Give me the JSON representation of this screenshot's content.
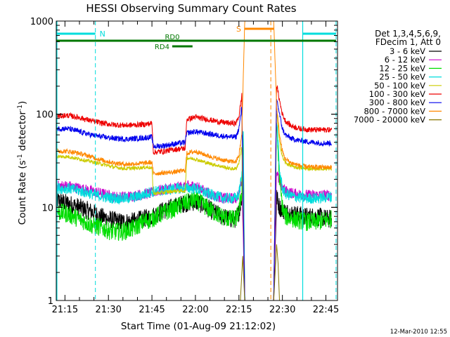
{
  "chart_data": {
    "type": "line",
    "title": "HESSI Observing Summary Count Rates",
    "xlabel": "Start Time (01-Aug-09 21:12:02)",
    "ylabel": "Count Rate (s⁻¹ detector⁻¹)",
    "ylabel_parts": {
      "a": "Count Rate (s",
      "sup1": "-1",
      "b": " detector",
      "sup2": "-1",
      "c": ")"
    },
    "y_scale": "log",
    "x_unit": "minutes of day",
    "xlim": [
      1272,
      1369
    ],
    "ylim": [
      1,
      1000
    ],
    "x_ticks": [
      {
        "v": 1275,
        "label": "21:15"
      },
      {
        "v": 1290,
        "label": "21:30"
      },
      {
        "v": 1305,
        "label": "21:45"
      },
      {
        "v": 1320,
        "label": "22:00"
      },
      {
        "v": 1335,
        "label": "22:15"
      },
      {
        "v": 1350,
        "label": "22:30"
      },
      {
        "v": 1365,
        "label": "22:45"
      }
    ],
    "y_ticks": [
      {
        "v": 1,
        "label": "1"
      },
      {
        "v": 10,
        "label": "10"
      },
      {
        "v": 100,
        "label": "100"
      },
      {
        "v": 1000,
        "label": "1000"
      }
    ],
    "legend": {
      "placement": "right",
      "header": [
        "Det 1,3,4,5,6,9,",
        "FDecim 1, Att 0"
      ]
    },
    "series": [
      {
        "name": "3 - 6 keV",
        "color": "#000000",
        "noise": 0.1,
        "points": [
          [
            1272,
            12
          ],
          [
            1276,
            11
          ],
          [
            1280,
            10
          ],
          [
            1284,
            9
          ],
          [
            1287,
            8
          ],
          [
            1290,
            7.5
          ],
          [
            1294,
            7
          ],
          [
            1298,
            7
          ],
          [
            1302,
            7.5
          ],
          [
            1305,
            8
          ],
          [
            1308,
            9
          ],
          [
            1312,
            10
          ],
          [
            1316,
            11
          ],
          [
            1320,
            11.5
          ],
          [
            1323,
            10.5
          ],
          [
            1326,
            9
          ],
          [
            1329,
            8
          ],
          [
            1332,
            7.5
          ],
          [
            1334,
            7.5
          ],
          [
            1335,
            9
          ],
          [
            1336,
            13
          ],
          [
            1336.5,
            20
          ],
          [
            1337,
            1
          ],
          [
            1347,
            1
          ],
          [
            1348,
            13
          ],
          [
            1349,
            10
          ],
          [
            1351,
            9
          ],
          [
            1354,
            8.5
          ],
          [
            1358,
            8
          ],
          [
            1362,
            8
          ],
          [
            1366,
            7.5
          ],
          [
            1367,
            7.5
          ]
        ]
      },
      {
        "name": "6 - 12 keV",
        "color": "#cc00cc",
        "noise": 0.06,
        "points": [
          [
            1272,
            17
          ],
          [
            1276,
            17
          ],
          [
            1280,
            16
          ],
          [
            1284,
            15
          ],
          [
            1288,
            14
          ],
          [
            1292,
            13
          ],
          [
            1296,
            13
          ],
          [
            1300,
            13.5
          ],
          [
            1303,
            14
          ],
          [
            1304,
            14
          ],
          [
            1307,
            15
          ],
          [
            1311,
            16
          ],
          [
            1314,
            16.5
          ],
          [
            1317,
            17
          ],
          [
            1320,
            17
          ],
          [
            1323,
            15
          ],
          [
            1326,
            13.5
          ],
          [
            1330,
            12.5
          ],
          [
            1334,
            12.5
          ],
          [
            1335,
            14
          ],
          [
            1336,
            20
          ],
          [
            1337,
            1
          ],
          [
            1347,
            1
          ],
          [
            1348,
            25
          ],
          [
            1349,
            18
          ],
          [
            1351,
            15
          ],
          [
            1354,
            14
          ],
          [
            1358,
            13.5
          ],
          [
            1362,
            13.5
          ],
          [
            1367,
            13.5
          ]
        ]
      },
      {
        "name": "12 - 25 keV",
        "color": "#00dd00",
        "noise": 0.1,
        "points": [
          [
            1272,
            9
          ],
          [
            1276,
            8.5
          ],
          [
            1280,
            7.5
          ],
          [
            1284,
            6.5
          ],
          [
            1288,
            6
          ],
          [
            1291,
            5.5
          ],
          [
            1295,
            5.5
          ],
          [
            1299,
            6
          ],
          [
            1302,
            7
          ],
          [
            1305,
            7.5
          ],
          [
            1308,
            8.5
          ],
          [
            1312,
            9.5
          ],
          [
            1316,
            11
          ],
          [
            1320,
            12
          ],
          [
            1323,
            10.5
          ],
          [
            1326,
            9
          ],
          [
            1329,
            8
          ],
          [
            1332,
            7.5
          ],
          [
            1334,
            7.5
          ],
          [
            1335,
            9
          ],
          [
            1336,
            15
          ],
          [
            1336.5,
            70
          ],
          [
            1337,
            1
          ],
          [
            1347,
            1
          ],
          [
            1348,
            80
          ],
          [
            1349,
            20
          ],
          [
            1350,
            10
          ],
          [
            1351,
            8
          ],
          [
            1354,
            7.5
          ],
          [
            1358,
            7
          ],
          [
            1362,
            7
          ],
          [
            1367,
            7.5
          ]
        ]
      },
      {
        "name": "25 - 50 keV",
        "color": "#00dddd",
        "noise": 0.06,
        "points": [
          [
            1272,
            16
          ],
          [
            1276,
            16
          ],
          [
            1280,
            15
          ],
          [
            1284,
            14
          ],
          [
            1288,
            13
          ],
          [
            1292,
            12.5
          ],
          [
            1296,
            12.5
          ],
          [
            1300,
            13
          ],
          [
            1303,
            14
          ],
          [
            1304,
            14.5
          ],
          [
            1307,
            15
          ],
          [
            1311,
            15.5
          ],
          [
            1314,
            16
          ],
          [
            1317,
            16
          ],
          [
            1320,
            16
          ],
          [
            1323,
            14.5
          ],
          [
            1326,
            13.5
          ],
          [
            1330,
            12.5
          ],
          [
            1334,
            12.5
          ],
          [
            1335,
            14
          ],
          [
            1336,
            22
          ],
          [
            1336.5,
            80
          ],
          [
            1337,
            1
          ],
          [
            1347,
            1
          ],
          [
            1348,
            90
          ],
          [
            1349,
            25
          ],
          [
            1350,
            16
          ],
          [
            1351,
            14
          ],
          [
            1354,
            13
          ],
          [
            1358,
            12.5
          ],
          [
            1362,
            12.5
          ],
          [
            1367,
            13
          ]
        ]
      },
      {
        "name": "50 - 100 keV",
        "color": "#cccc00",
        "noise": 0.02,
        "points": [
          [
            1272,
            35
          ],
          [
            1276,
            35
          ],
          [
            1280,
            33
          ],
          [
            1284,
            31
          ],
          [
            1288,
            29
          ],
          [
            1292,
            27
          ],
          [
            1296,
            26
          ],
          [
            1300,
            26.5
          ],
          [
            1304,
            27
          ],
          [
            1305,
            26
          ],
          [
            1305.5,
            14
          ],
          [
            1309,
            14.5
          ],
          [
            1313,
            15
          ],
          [
            1316.5,
            15
          ],
          [
            1317,
            34
          ],
          [
            1320,
            33
          ],
          [
            1324,
            30
          ],
          [
            1328,
            28
          ],
          [
            1332,
            26
          ],
          [
            1334,
            26
          ],
          [
            1335,
            30
          ],
          [
            1336,
            45
          ],
          [
            1337,
            1
          ],
          [
            1347,
            1
          ],
          [
            1348,
            110
          ],
          [
            1349,
            50
          ],
          [
            1350,
            35
          ],
          [
            1351,
            30
          ],
          [
            1354,
            27
          ],
          [
            1358,
            26
          ],
          [
            1362,
            26
          ],
          [
            1367,
            26
          ]
        ]
      },
      {
        "name": "100 - 300 keV",
        "color": "#ee0000",
        "noise": 0.03,
        "points": [
          [
            1272,
            95
          ],
          [
            1276,
            97
          ],
          [
            1280,
            92
          ],
          [
            1284,
            85
          ],
          [
            1288,
            80
          ],
          [
            1292,
            77
          ],
          [
            1296,
            76
          ],
          [
            1300,
            77
          ],
          [
            1303,
            78
          ],
          [
            1305,
            80
          ],
          [
            1305.5,
            39
          ],
          [
            1309,
            40
          ],
          [
            1313,
            42
          ],
          [
            1316.5,
            43
          ],
          [
            1317,
            88
          ],
          [
            1320,
            93
          ],
          [
            1324,
            88
          ],
          [
            1328,
            83
          ],
          [
            1332,
            80
          ],
          [
            1334,
            80
          ],
          [
            1335,
            95
          ],
          [
            1336,
            160
          ],
          [
            1337,
            1
          ],
          [
            1347,
            1
          ],
          [
            1348,
            210
          ],
          [
            1349,
            140
          ],
          [
            1350,
            100
          ],
          [
            1351,
            85
          ],
          [
            1353,
            75
          ],
          [
            1356,
            70
          ],
          [
            1360,
            68
          ],
          [
            1364,
            68
          ],
          [
            1367,
            68
          ]
        ]
      },
      {
        "name": "300 - 800 keV",
        "color": "#0000ee",
        "noise": 0.03,
        "points": [
          [
            1272,
            70
          ],
          [
            1276,
            70
          ],
          [
            1280,
            65
          ],
          [
            1284,
            60
          ],
          [
            1288,
            57
          ],
          [
            1292,
            55
          ],
          [
            1296,
            54
          ],
          [
            1300,
            55
          ],
          [
            1303,
            56
          ],
          [
            1305,
            57
          ],
          [
            1305.5,
            45
          ],
          [
            1309,
            46
          ],
          [
            1313,
            48
          ],
          [
            1316.5,
            50
          ],
          [
            1317,
            63
          ],
          [
            1320,
            65
          ],
          [
            1324,
            62
          ],
          [
            1328,
            59
          ],
          [
            1332,
            57
          ],
          [
            1334,
            57
          ],
          [
            1335,
            70
          ],
          [
            1336,
            120
          ],
          [
            1337,
            1
          ],
          [
            1347,
            1
          ],
          [
            1348,
            150
          ],
          [
            1349,
            100
          ],
          [
            1350,
            70
          ],
          [
            1351,
            60
          ],
          [
            1353,
            55
          ],
          [
            1356,
            52
          ],
          [
            1360,
            50
          ],
          [
            1364,
            49
          ],
          [
            1367,
            49
          ]
        ]
      },
      {
        "name": "800 - 7000 keV",
        "color": "#ff8800",
        "noise": 0.025,
        "points": [
          [
            1272,
            40
          ],
          [
            1276,
            40
          ],
          [
            1280,
            38
          ],
          [
            1284,
            35
          ],
          [
            1288,
            32
          ],
          [
            1292,
            30
          ],
          [
            1296,
            29
          ],
          [
            1300,
            29.5
          ],
          [
            1303,
            30
          ],
          [
            1305,
            30.5
          ],
          [
            1305.5,
            23
          ],
          [
            1309,
            23.5
          ],
          [
            1313,
            24
          ],
          [
            1316.5,
            25
          ],
          [
            1317,
            38
          ],
          [
            1320,
            40
          ],
          [
            1324,
            36
          ],
          [
            1328,
            33
          ],
          [
            1332,
            31
          ],
          [
            1334,
            31
          ],
          [
            1335,
            36
          ],
          [
            1336,
            60
          ],
          [
            1337,
            1000
          ],
          [
            1347,
            1000
          ],
          [
            1348,
            120
          ],
          [
            1349,
            60
          ],
          [
            1350,
            40
          ],
          [
            1351,
            33
          ],
          [
            1353,
            30
          ],
          [
            1356,
            28
          ],
          [
            1360,
            27
          ],
          [
            1364,
            27
          ],
          [
            1367,
            27
          ]
        ]
      },
      {
        "name": "7000 - 20000 keV",
        "color": "#887700",
        "noise": 0,
        "points": [
          [
            1335.5,
            1
          ],
          [
            1336.3,
            3
          ],
          [
            1337,
            1
          ],
          [
            1347,
            1
          ],
          [
            1348,
            4
          ],
          [
            1348.5,
            2.5
          ],
          [
            1349,
            1
          ]
        ]
      }
    ],
    "annotations": {
      "night": [
        {
          "label": "N",
          "x": [
            1272,
            1285.5
          ],
          "dash_at": 1285.5,
          "color": "#00dddd"
        },
        {
          "label": "",
          "x": [
            1357,
            1368.5
          ],
          "start_at": 1357,
          "dash_at": 1368.5,
          "color": "#00dddd"
        }
      ],
      "saa": {
        "label": "S",
        "x": [
          1337,
          1347
        ],
        "dash_at": 1346,
        "color": "#ff8800"
      },
      "attenuator": {
        "color": "#007700",
        "baseline": [
          1272,
          1368.5
        ],
        "segments": [
          {
            "label": "RD0",
            "x": [
              1304,
              1320
            ]
          },
          {
            "label": "RD4",
            "x": [
              1312,
              1319
            ]
          }
        ]
      },
      "start_line_x": 1272.2
    },
    "footer_timestamp": "12-Mar-2010 12:55"
  }
}
